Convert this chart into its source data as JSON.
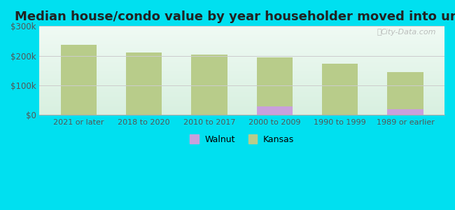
{
  "title": "Median house/condo value by year householder moved into unit",
  "categories": [
    "2021 or later",
    "2018 to 2020",
    "2010 to 2017",
    "2000 to 2009",
    "1990 to 1999",
    "1989 or earlier"
  ],
  "walnut_values": [
    0,
    0,
    0,
    30000,
    0,
    20000
  ],
  "kansas_values": [
    237000,
    212000,
    205000,
    194000,
    173000,
    145000
  ],
  "walnut_color": "#c9a0dc",
  "kansas_color": "#b8cc8a",
  "background_top": "#f0faf4",
  "background_bottom": "#d8f0e0",
  "outer_background": "#00e0f0",
  "ylim": [
    0,
    300000
  ],
  "yticks": [
    0,
    100000,
    200000,
    300000
  ],
  "ytick_labels": [
    "$0",
    "$100k",
    "$200k",
    "$300k"
  ],
  "legend_walnut": "Walnut",
  "legend_kansas": "Kansas",
  "watermark": "City-Data.com",
  "title_fontsize": 13,
  "bar_width": 0.55
}
